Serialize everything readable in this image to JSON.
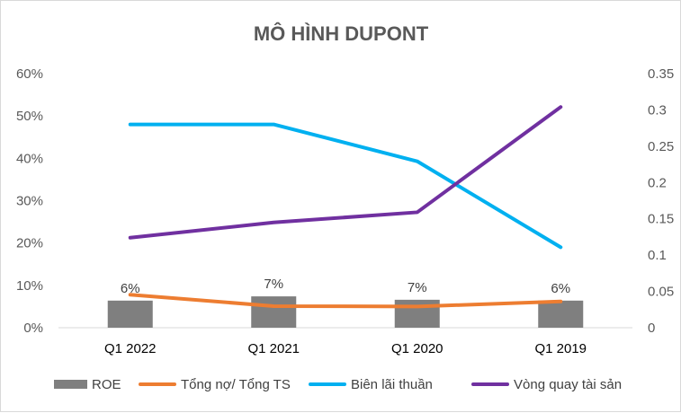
{
  "chart_data": {
    "type": "bar",
    "title": "MÔ HÌNH DUPONT",
    "categories": [
      "Q1 2022",
      "Q1 2021",
      "Q1 2020",
      "Q1 2019"
    ],
    "y_left": {
      "ylim": [
        0,
        0.6
      ],
      "ticks": [
        0,
        0.1,
        0.2,
        0.3,
        0.4,
        0.5,
        0.6
      ],
      "tick_labels": [
        "0%",
        "10%",
        "20%",
        "30%",
        "40%",
        "50%",
        "60%"
      ]
    },
    "y_right": {
      "ylim": [
        0,
        0.35
      ],
      "ticks": [
        0,
        0.05,
        0.1,
        0.15,
        0.2,
        0.25,
        0.3,
        0.35
      ],
      "tick_labels": [
        "0",
        "0.05",
        "0.1",
        "0.15",
        "0.2",
        "0.25",
        "0.3",
        "0.35"
      ]
    },
    "series": [
      {
        "name": "ROE",
        "type": "bar",
        "axis": "left",
        "color": "#7f7f7f",
        "values": [
          0.064,
          0.074,
          0.066,
          0.064
        ],
        "labels": [
          "6%",
          "7%",
          "7%",
          "6%"
        ]
      },
      {
        "name": "Tổng nợ/ Tổng TS",
        "type": "line",
        "axis": "left",
        "color": "#ed7d31",
        "values": [
          0.078,
          0.051,
          0.05,
          0.062
        ]
      },
      {
        "name": "Biên lãi thuần",
        "type": "line",
        "axis": "left",
        "color": "#00b0f0",
        "values": [
          0.48,
          0.48,
          0.393,
          0.19
        ]
      },
      {
        "name": "Vòng quay tài sản",
        "type": "line",
        "axis": "right",
        "color": "#7030a0",
        "values": [
          0.124,
          0.145,
          0.159,
          0.304
        ]
      }
    ],
    "legend_position": "bottom",
    "grid": false
  }
}
